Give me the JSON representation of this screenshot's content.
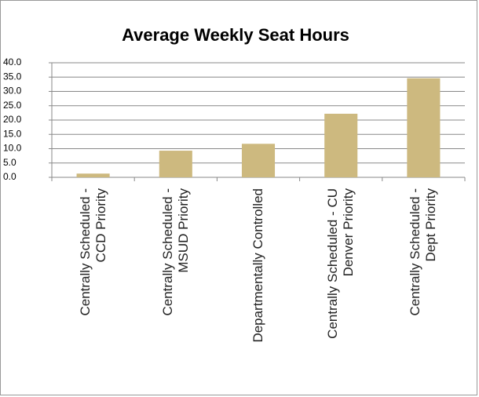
{
  "chart_data": {
    "type": "bar",
    "title": "Average Weekly Seat Hours",
    "categories": [
      "Centrally Scheduled - CCD Priority",
      "Centrally Scheduled - MSUD Priority",
      "Departmentally Controlled",
      "Centrally Scheduled - CU Denver Priority",
      "Centrally Scheduled - Dept Priority"
    ],
    "values": [
      1.3,
      9.3,
      11.7,
      22.2,
      34.6
    ],
    "color": "#cdb97f",
    "ylim": [
      0,
      40
    ],
    "yticks": [
      {
        "value": 0,
        "label": "0.0"
      },
      {
        "value": 5,
        "label": "5.0"
      },
      {
        "value": 10,
        "label": "10.0"
      },
      {
        "value": 15,
        "label": "15.0"
      },
      {
        "value": 20,
        "label": "20.0"
      },
      {
        "value": 25,
        "label": "25.0"
      },
      {
        "value": 30,
        "label": "30.0"
      },
      {
        "value": 35,
        "label": "35.0"
      },
      {
        "value": 40,
        "label": "40.0"
      }
    ],
    "grid": true
  }
}
